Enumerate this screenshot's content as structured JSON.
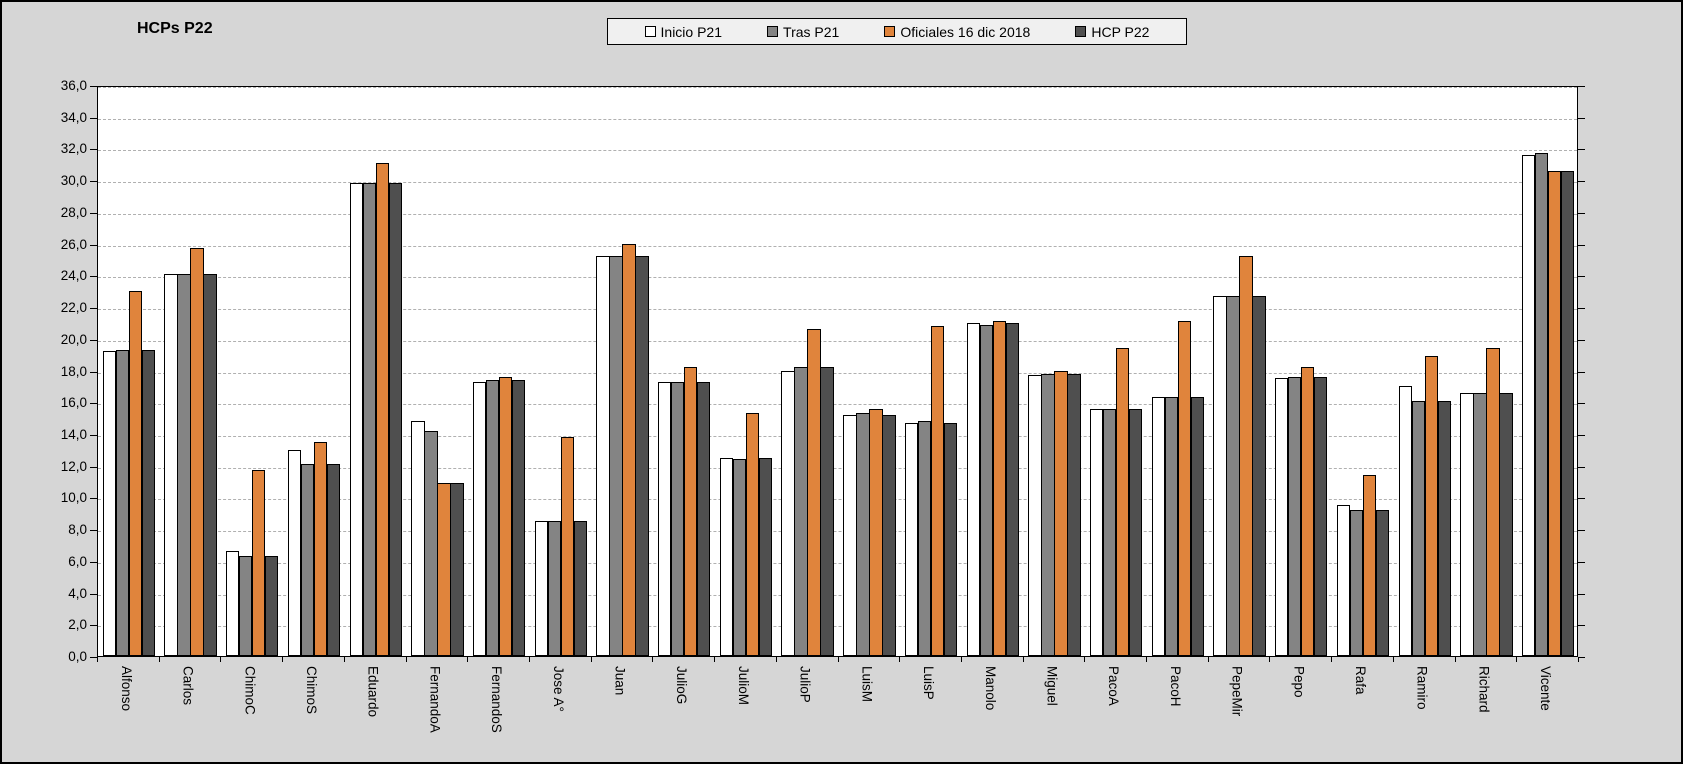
{
  "chart_data": {
    "type": "bar",
    "title": "HCPs P22",
    "legend_position": "top",
    "grid": true,
    "ylim": [
      0,
      36
    ],
    "ytick_step": 2,
    "decimal_separator": ",",
    "ytick_labels": [
      "0,0",
      "2,0",
      "4,0",
      "6,0",
      "8,0",
      "10,0",
      "12,0",
      "14,0",
      "16,0",
      "18,0",
      "20,0",
      "22,0",
      "24,0",
      "26,0",
      "28,0",
      "30,0",
      "32,0",
      "34,0",
      "36,0"
    ],
    "categories": [
      "Alfonso",
      "Carlos",
      "ChimoC",
      "ChimoS",
      "Eduardo",
      "FernandoA",
      "FernandoS",
      "Jose A°",
      "Juan",
      "JulioG",
      "JulioM",
      "JulioP",
      "LuisM",
      "LuisP",
      "Manolo",
      "Miguel",
      "PacoA",
      "PacoH",
      "PepeMir",
      "Pepo",
      "Rafa",
      "Ramiro",
      "Richard",
      "Vicente"
    ],
    "series": [
      {
        "name": "Inicio P21",
        "color": "#FFFFFF",
        "values": [
          19.2,
          24.1,
          6.6,
          13.0,
          29.8,
          14.8,
          17.3,
          8.5,
          25.2,
          17.3,
          12.5,
          18.0,
          15.2,
          14.7,
          21.0,
          17.7,
          15.6,
          16.3,
          22.7,
          17.5,
          9.5,
          17.0,
          16.6,
          31.6
        ]
      },
      {
        "name": "Tras P21",
        "color": "#848484",
        "values": [
          19.3,
          24.1,
          6.3,
          12.1,
          29.8,
          14.2,
          17.4,
          8.5,
          25.2,
          17.3,
          12.4,
          18.2,
          15.3,
          14.8,
          20.9,
          17.8,
          15.6,
          16.3,
          22.7,
          17.6,
          9.2,
          16.1,
          16.6,
          31.7
        ]
      },
      {
        "name": "Oficiales 16 dic 2018",
        "color": "#E0843C",
        "values": [
          23.0,
          25.7,
          11.7,
          13.5,
          31.1,
          10.9,
          17.6,
          13.8,
          26.0,
          18.2,
          15.3,
          20.6,
          15.6,
          20.8,
          21.1,
          18.0,
          19.4,
          21.1,
          25.2,
          18.2,
          11.4,
          18.9,
          19.4,
          30.6
        ]
      },
      {
        "name": "HCP P22",
        "color": "#4F4F4F",
        "values": [
          19.3,
          24.1,
          6.3,
          12.1,
          29.8,
          10.9,
          17.4,
          8.5,
          25.2,
          17.3,
          12.5,
          18.2,
          15.2,
          14.7,
          21.0,
          17.8,
          15.6,
          16.3,
          22.7,
          17.6,
          9.2,
          16.1,
          16.6,
          30.6
        ]
      }
    ],
    "colors": {
      "canvas_background": "#D6D6D6",
      "plot_background": "#FFFFFF",
      "gridline": "#B0B0B0",
      "axis": "#000000",
      "bar_border": "#000000"
    }
  }
}
